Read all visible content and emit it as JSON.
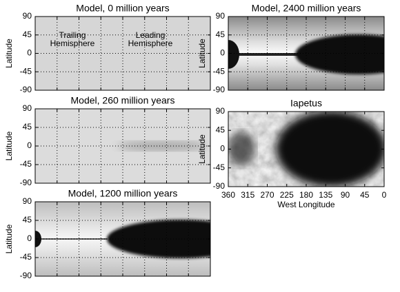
{
  "chart_data": [
    {
      "type": "image",
      "title": "Model, 0 million years",
      "ylabel": "Latitude",
      "xlim": [
        360,
        0
      ],
      "xticks": [
        360,
        315,
        270,
        225,
        180,
        135,
        90,
        45,
        0
      ],
      "xtick_labels": false,
      "ylim": [
        -90,
        90
      ],
      "yticks": [
        -90,
        -45,
        0,
        45,
        90
      ],
      "grid": true,
      "annotations": [
        [
          "Trailing",
          "Hemisphere"
        ],
        [
          "Leading",
          "Hemisphere"
        ]
      ]
    },
    {
      "type": "image",
      "title": "Model, 260 million years",
      "ylabel": "Latitude",
      "xlim": [
        360,
        0
      ],
      "xticks": [
        360,
        315,
        270,
        225,
        180,
        135,
        90,
        45,
        0
      ],
      "xtick_labels": false,
      "ylim": [
        -90,
        90
      ],
      "yticks": [
        -90,
        -45,
        0,
        45,
        90
      ],
      "grid": true
    },
    {
      "type": "image",
      "title": "Model, 1200 million years",
      "ylabel": "Latitude",
      "xlim": [
        360,
        0
      ],
      "xticks": [
        360,
        315,
        270,
        225,
        180,
        135,
        90,
        45,
        0
      ],
      "xtick_labels": false,
      "ylim": [
        -90,
        90
      ],
      "yticks": [
        -90,
        -45,
        0,
        45,
        90
      ],
      "grid": true
    },
    {
      "type": "image",
      "title": "Model, 2400 million years",
      "ylabel": "Latitude",
      "xlim": [
        360,
        0
      ],
      "xticks": [
        360,
        315,
        270,
        225,
        180,
        135,
        90,
        45,
        0
      ],
      "xtick_labels": false,
      "ylim": [
        -90,
        90
      ],
      "yticks": [
        -90,
        -45,
        0,
        45,
        90
      ],
      "grid": true
    },
    {
      "type": "image",
      "title": "Iapetus",
      "ylabel": "Latitude",
      "xlabel": "West Longitude",
      "xlim": [
        360,
        0
      ],
      "xticks": [
        360,
        315,
        270,
        225,
        180,
        135,
        90,
        45,
        0
      ],
      "xtick_labels": true,
      "ylim": [
        -90,
        90
      ],
      "yticks": [
        -90,
        -45,
        0,
        45,
        90
      ],
      "grid": false
    }
  ]
}
